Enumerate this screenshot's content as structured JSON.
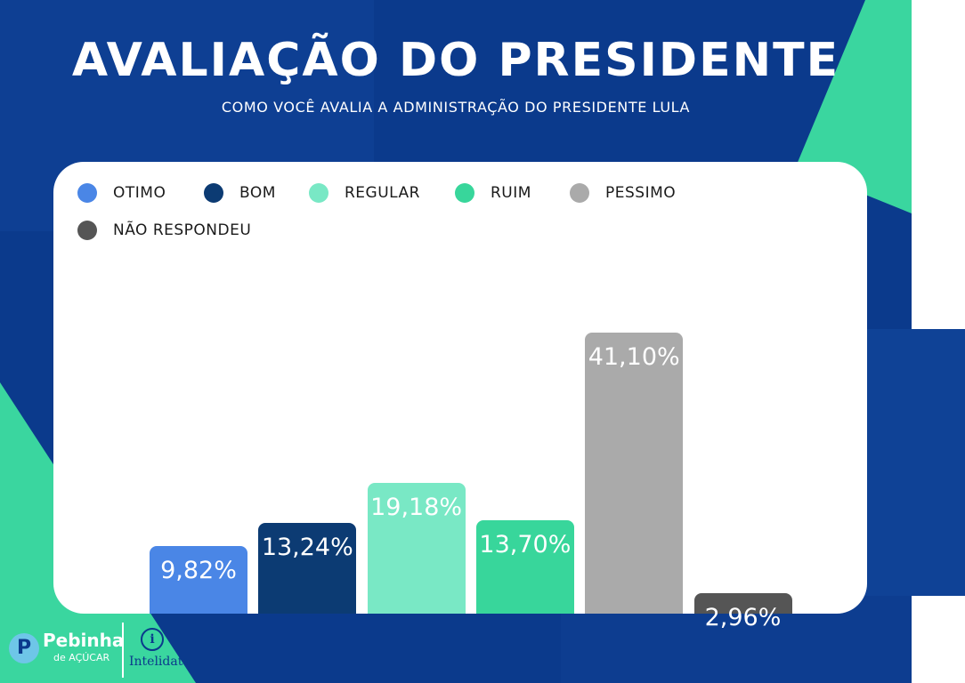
{
  "title": "AVALIAÇÃO DO PRESIDENTE",
  "subtitle": "COMO VOCÊ AVALIA A ADMINISTRAÇÃO DO PRESIDENTE LULA",
  "chart_data": {
    "type": "bar",
    "title": "AVALIAÇÃO DO PRESIDENTE",
    "subtitle": "COMO VOCÊ AVALIA A ADMINISTRAÇÃO DO PRESIDENTE LULA",
    "categories": [
      "OTIMO",
      "BOM",
      "REGULAR",
      "RUIM",
      "PESSIMO",
      "NÃO RESPONDEU"
    ],
    "values": [
      9.82,
      13.24,
      19.18,
      13.7,
      41.1,
      2.96
    ],
    "value_labels": [
      "9,82%",
      "13,24%",
      "19,18%",
      "13,70%",
      "41,10%",
      "2,96%"
    ],
    "colors": [
      "#4a86e6",
      "#0c3b73",
      "#79e8c5",
      "#38d69b",
      "#aaaaaa",
      "#555555"
    ],
    "unit": "%",
    "legend_position": "top-left",
    "grid": false,
    "ylim": [
      0,
      41.1
    ]
  },
  "logos": {
    "left_mark": "P",
    "left_name": "Pebinha",
    "left_tagline": "de AÇÚCAR",
    "right_mark": "i",
    "right_name": "Intelidata"
  }
}
